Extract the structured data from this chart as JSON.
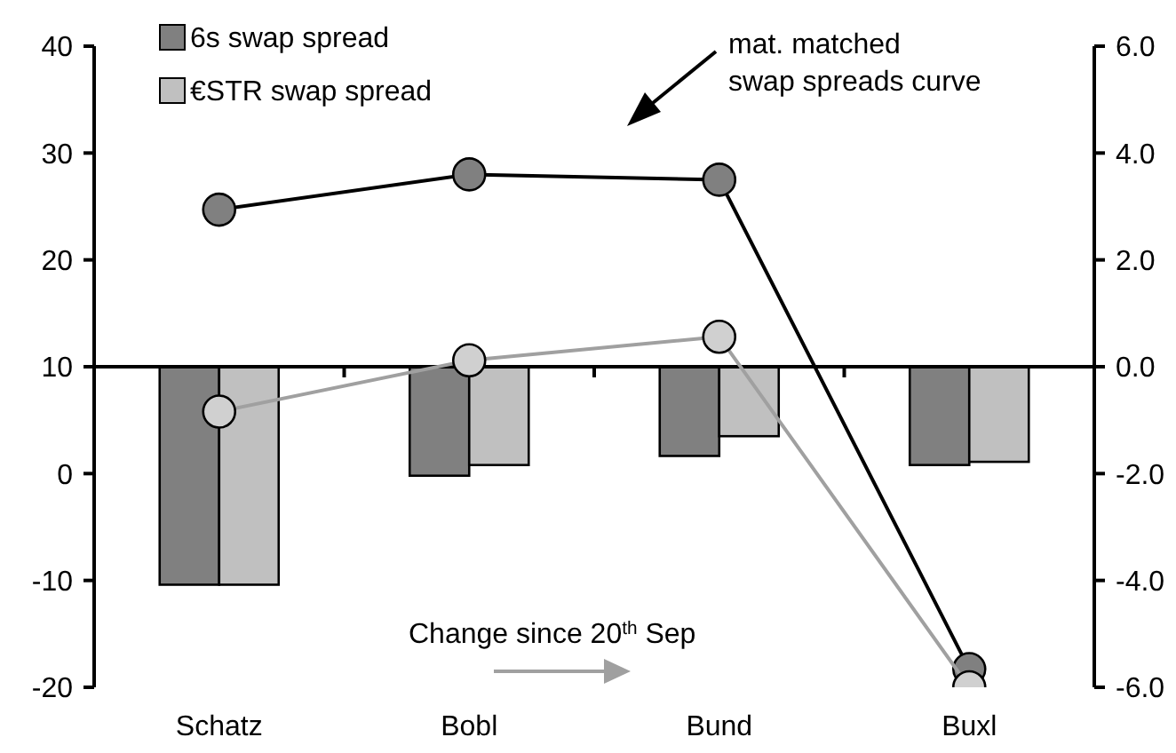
{
  "chart_data": {
    "type": "bar",
    "categories": [
      "Schatz",
      "Bobl",
      "Bund",
      "Buxl"
    ],
    "series": [
      {
        "name": "6s swap spread",
        "color": "#808080",
        "axis": "y2",
        "values": [
          -4.08,
          -2.04,
          -1.67,
          -1.84
        ]
      },
      {
        "name": "€STR swap spread",
        "color": "#c0c0c0",
        "axis": "y2",
        "values": [
          -4.08,
          -1.84,
          -1.3,
          -1.78
        ]
      },
      {
        "type": "line",
        "color": "#000000",
        "values": [
          24.7,
          28,
          27.5,
          -18.3
        ]
      },
      {
        "type": "line",
        "color": "#a0a0a0",
        "values": [
          5.8,
          10.6,
          12.8,
          -20
        ]
      }
    ],
    "ylim": [
      -20,
      40
    ],
    "yticks": [
      -20,
      -10,
      0,
      10,
      20,
      30,
      40
    ],
    "y2lim": [
      -6,
      6
    ],
    "y2ticks": [
      {
        "value": -6,
        "label": "-6.0"
      },
      {
        "value": -4,
        "label": "-4.0"
      },
      {
        "value": -2,
        "label": "-2.0"
      },
      {
        "value": 0,
        "label": "0.0"
      },
      {
        "value": 2,
        "label": "2.0"
      },
      {
        "value": 4,
        "label": "4.0"
      },
      {
        "value": 6,
        "label": "6.0"
      }
    ],
    "legend": "top left",
    "marker": "circle",
    "annotations": [
      "mat. matched swap spreads curve",
      "Change since 20$^{th}$ Sep"
    ]
  }
}
